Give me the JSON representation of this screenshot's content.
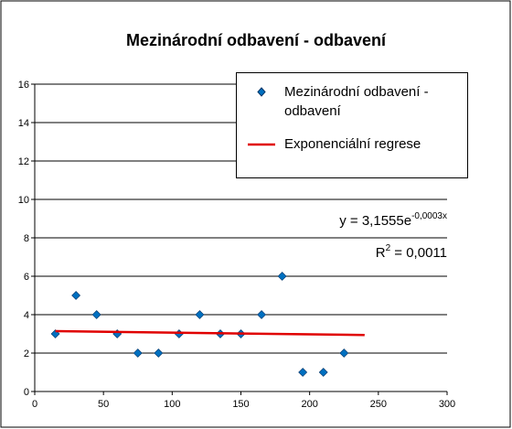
{
  "chart_data": {
    "type": "scatter",
    "title": "Mezinárodní odbavení - odbavení",
    "series": [
      {
        "name": "Mezinárodní odbavení - odbavení",
        "color": "#0070c0",
        "marker": "diamond",
        "x": [
          15,
          30,
          45,
          60,
          75,
          90,
          105,
          120,
          135,
          150,
          165,
          180,
          195,
          210,
          225
        ],
        "values": [
          3,
          5,
          4,
          3,
          2,
          2,
          3,
          4,
          3,
          3,
          4,
          6,
          1,
          1,
          2
        ]
      },
      {
        "name": "Exponenciální regrese",
        "color": "#e00000",
        "type": "line",
        "x": [
          15,
          240
        ],
        "values": [
          3.14,
          2.94
        ]
      }
    ],
    "xlim": [
      0,
      300
    ],
    "xticks": [
      0,
      50,
      100,
      150,
      200,
      250,
      300
    ],
    "ylim": [
      0,
      16
    ],
    "yticks": [
      0,
      2,
      4,
      6,
      8,
      10,
      12,
      14,
      16
    ],
    "grid": true,
    "legend": "upper-right",
    "annotations": [
      {
        "text": "y = 3,1555e",
        "superscript": "-0,0003x"
      },
      {
        "text": "R",
        "superscript": "2",
        "suffix": " = 0,0011"
      }
    ]
  }
}
